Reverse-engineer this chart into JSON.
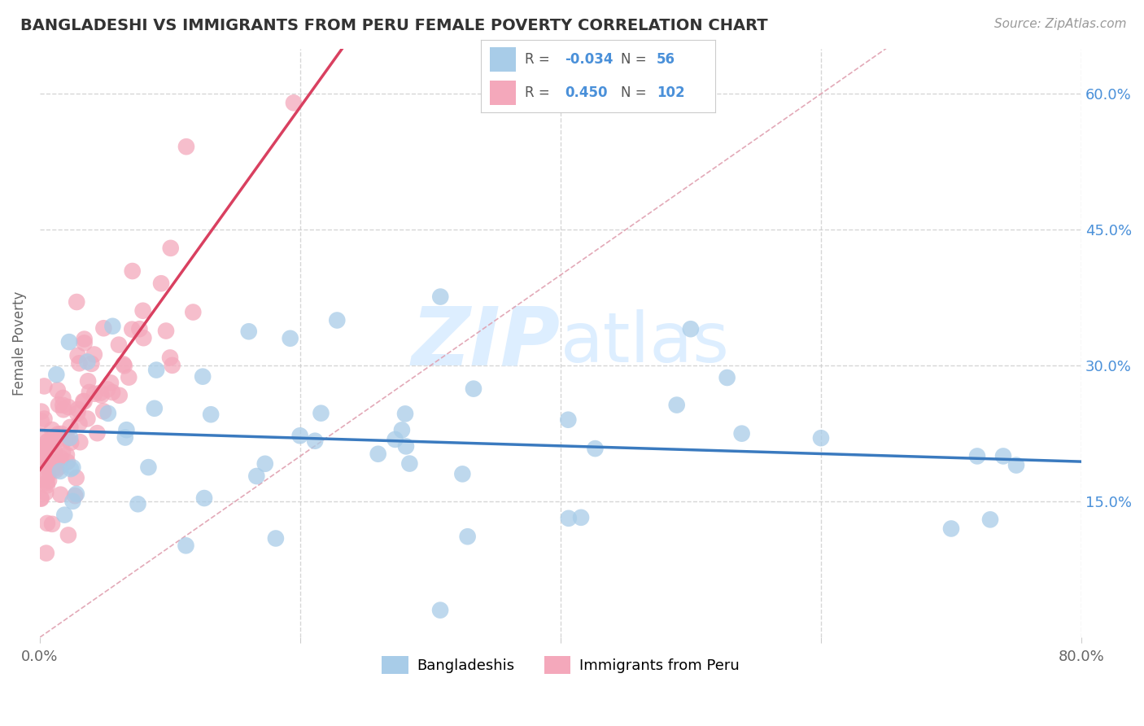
{
  "title": "BANGLADESHI VS IMMIGRANTS FROM PERU FEMALE POVERTY CORRELATION CHART",
  "source": "Source: ZipAtlas.com",
  "ylabel": "Female Poverty",
  "watermark_zip": "ZIP",
  "watermark_atlas": "atlas",
  "xlim": [
    0.0,
    0.8
  ],
  "ylim": [
    0.0,
    0.65
  ],
  "yticks": [
    0.15,
    0.3,
    0.45,
    0.6
  ],
  "yticklabels": [
    "15.0%",
    "30.0%",
    "45.0%",
    "60.0%"
  ],
  "legend_labels": [
    "Bangladeshis",
    "Immigrants from Peru"
  ],
  "legend_r_bangla": "-0.034",
  "legend_r_peru": "0.450",
  "legend_n_bangla": "56",
  "legend_n_peru": "102",
  "color_bangla": "#a8cce8",
  "color_peru": "#f4a8bb",
  "line_color_bangla": "#3a7abf",
  "line_color_peru": "#d94060",
  "diagonal_color": "#e0a0b0",
  "background_color": "#ffffff",
  "grid_color": "#cccccc",
  "title_color": "#333333",
  "right_ytick_color": "#4a90d9",
  "legend_text_color": "#4a90d9",
  "legend_label_color": "#555555"
}
